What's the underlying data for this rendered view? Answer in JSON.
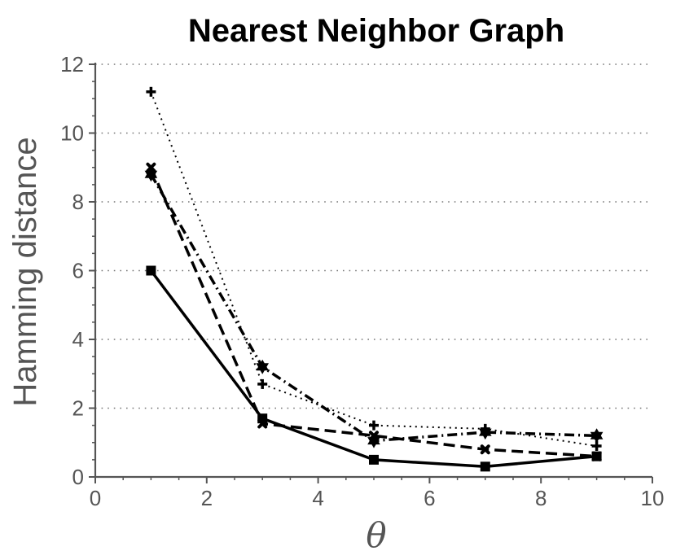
{
  "chart_data": {
    "type": "line",
    "title": "Nearest Neighbor Graph",
    "xlabel": "θ",
    "ylabel": "Hamming distance",
    "xlim": [
      0,
      10
    ],
    "ylim": [
      0,
      12
    ],
    "xticks": [
      0,
      2,
      4,
      6,
      8,
      10
    ],
    "yticks": [
      0,
      2,
      4,
      6,
      8,
      10,
      12
    ],
    "grid": "horizontal dotted",
    "x": [
      1,
      3,
      5,
      7,
      9
    ],
    "series": [
      {
        "values": [
          6.0,
          1.7,
          0.5,
          0.3,
          0.6
        ],
        "line": "solid",
        "marker": "square"
      },
      {
        "values": [
          9.0,
          1.55,
          1.2,
          0.8,
          0.6
        ],
        "line": "dashed",
        "marker": "x"
      },
      {
        "values": [
          11.2,
          2.7,
          1.5,
          1.4,
          0.9
        ],
        "line": "dotted",
        "marker": "plus"
      },
      {
        "values": [
          8.8,
          3.2,
          1.05,
          1.3,
          1.2
        ],
        "line": "dashdot",
        "marker": "star"
      }
    ],
    "colors": {
      "series": "#000000",
      "axis": "#555555",
      "grid": "#777777"
    }
  }
}
